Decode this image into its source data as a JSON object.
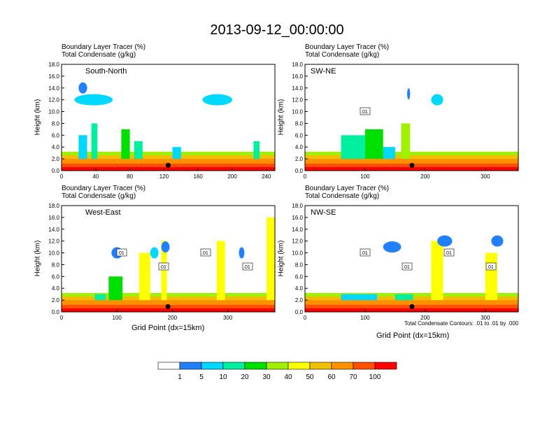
{
  "title": "2013-09-12_00:00:00",
  "panel_label_line1": "Boundary Layer Tracer   (%)",
  "panel_label_line2": "Total Condensate   (g/kg)",
  "footnote": "Total Condensate Contours: .01 to .01 by .000",
  "xaxis_label": "Grid Point (dx=15km)",
  "colorbar": {
    "colors": [
      "#ffffff",
      "#2080ff",
      "#00d8ff",
      "#00f0a0",
      "#00e000",
      "#a0f000",
      "#ffff00",
      "#f0c000",
      "#ff9000",
      "#ff5000",
      "#ff0000"
    ],
    "labels": [
      "1",
      "5",
      "10",
      "20",
      "30",
      "40",
      "50",
      "60",
      "70",
      "100"
    ]
  },
  "chart_data": [
    {
      "type": "contour",
      "name": "South-North",
      "title": "South-North",
      "xlabel": "",
      "ylabel": "Height (km)",
      "xlim": [
        0,
        250
      ],
      "ylim": [
        0,
        18
      ],
      "xticks": [
        "0",
        "40",
        "80",
        "120",
        "160",
        "200",
        "240"
      ],
      "yticks": [
        "0.0",
        "2.0",
        "4.0",
        "6.0",
        "8.0",
        "10.0",
        "12.0",
        "14.0",
        "16.0",
        "18.0"
      ],
      "marker_x": 125,
      "contour_labels": []
    },
    {
      "type": "contour",
      "name": "SW-NE",
      "title": "SW-NE",
      "xlabel": "",
      "ylabel": "Height (km)",
      "xlim": [
        0,
        355
      ],
      "ylim": [
        0,
        18
      ],
      "xticks": [
        "0",
        "100",
        "200",
        "300"
      ],
      "yticks": [
        "0.0",
        "2.0",
        "4.0",
        "6.0",
        "8.0",
        "10.0",
        "12.0",
        "14.0",
        "16.0",
        "18.0"
      ],
      "marker_x": 178,
      "contour_labels": [
        ".01"
      ]
    },
    {
      "type": "contour",
      "name": "West-East",
      "title": "West-East",
      "xlabel": "Grid Point (dx=15km)",
      "ylabel": "Height (km)",
      "xlim": [
        0,
        385
      ],
      "ylim": [
        0,
        18
      ],
      "xticks": [
        "0",
        "100",
        "200",
        "300"
      ],
      "yticks": [
        "0.0",
        "2.0",
        "4.0",
        "6.0",
        "8.0",
        "10.0",
        "12.0",
        "14.0",
        "16.0",
        "18.0"
      ],
      "marker_x": 192,
      "contour_labels": [
        ".01",
        ".01",
        ".01",
        ".01"
      ]
    },
    {
      "type": "contour",
      "name": "NW-SE",
      "title": "NW-SE",
      "xlabel": "Grid Point (dx=15km)",
      "ylabel": "Height (km)",
      "xlim": [
        0,
        355
      ],
      "ylim": [
        0,
        18
      ],
      "xticks": [
        "0",
        "100",
        "200",
        "300"
      ],
      "yticks": [
        "0.0",
        "2.0",
        "4.0",
        "6.0",
        "8.0",
        "10.0",
        "12.0",
        "14.0",
        "16.0",
        "18.0"
      ],
      "marker_x": 178,
      "contour_labels": [
        ".01",
        ".01",
        ".01",
        ".01"
      ]
    }
  ]
}
